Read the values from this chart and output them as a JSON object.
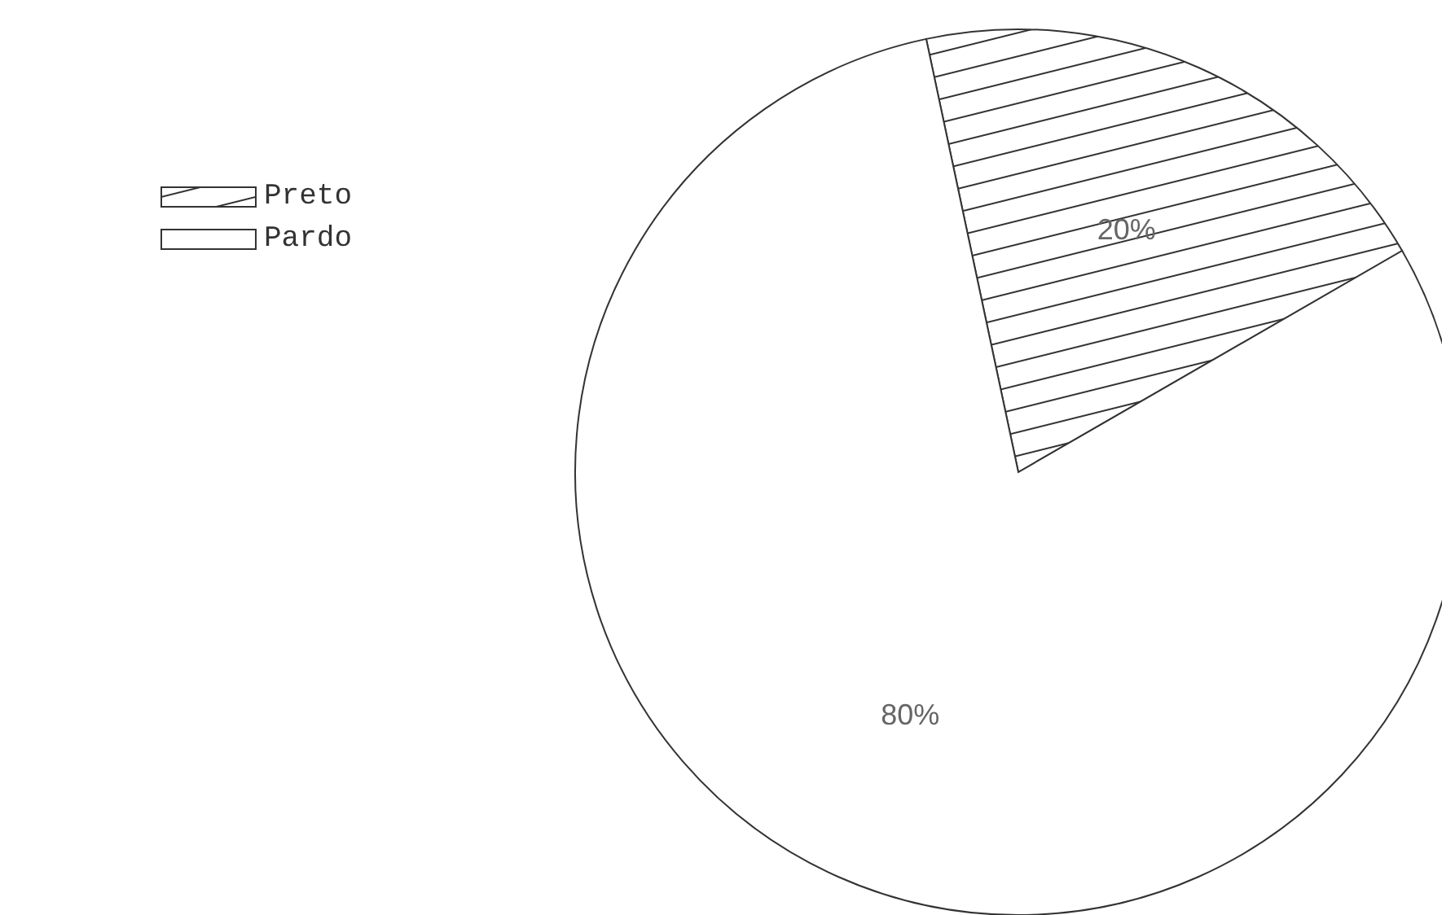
{
  "chart_data": {
    "type": "pie",
    "categories": [
      "Preto",
      "Pardo"
    ],
    "values": [
      20,
      80
    ],
    "colors": [
      "#333333",
      "#ffffff"
    ],
    "value_labels": [
      "20%",
      "80%"
    ],
    "legend": "top left"
  }
}
